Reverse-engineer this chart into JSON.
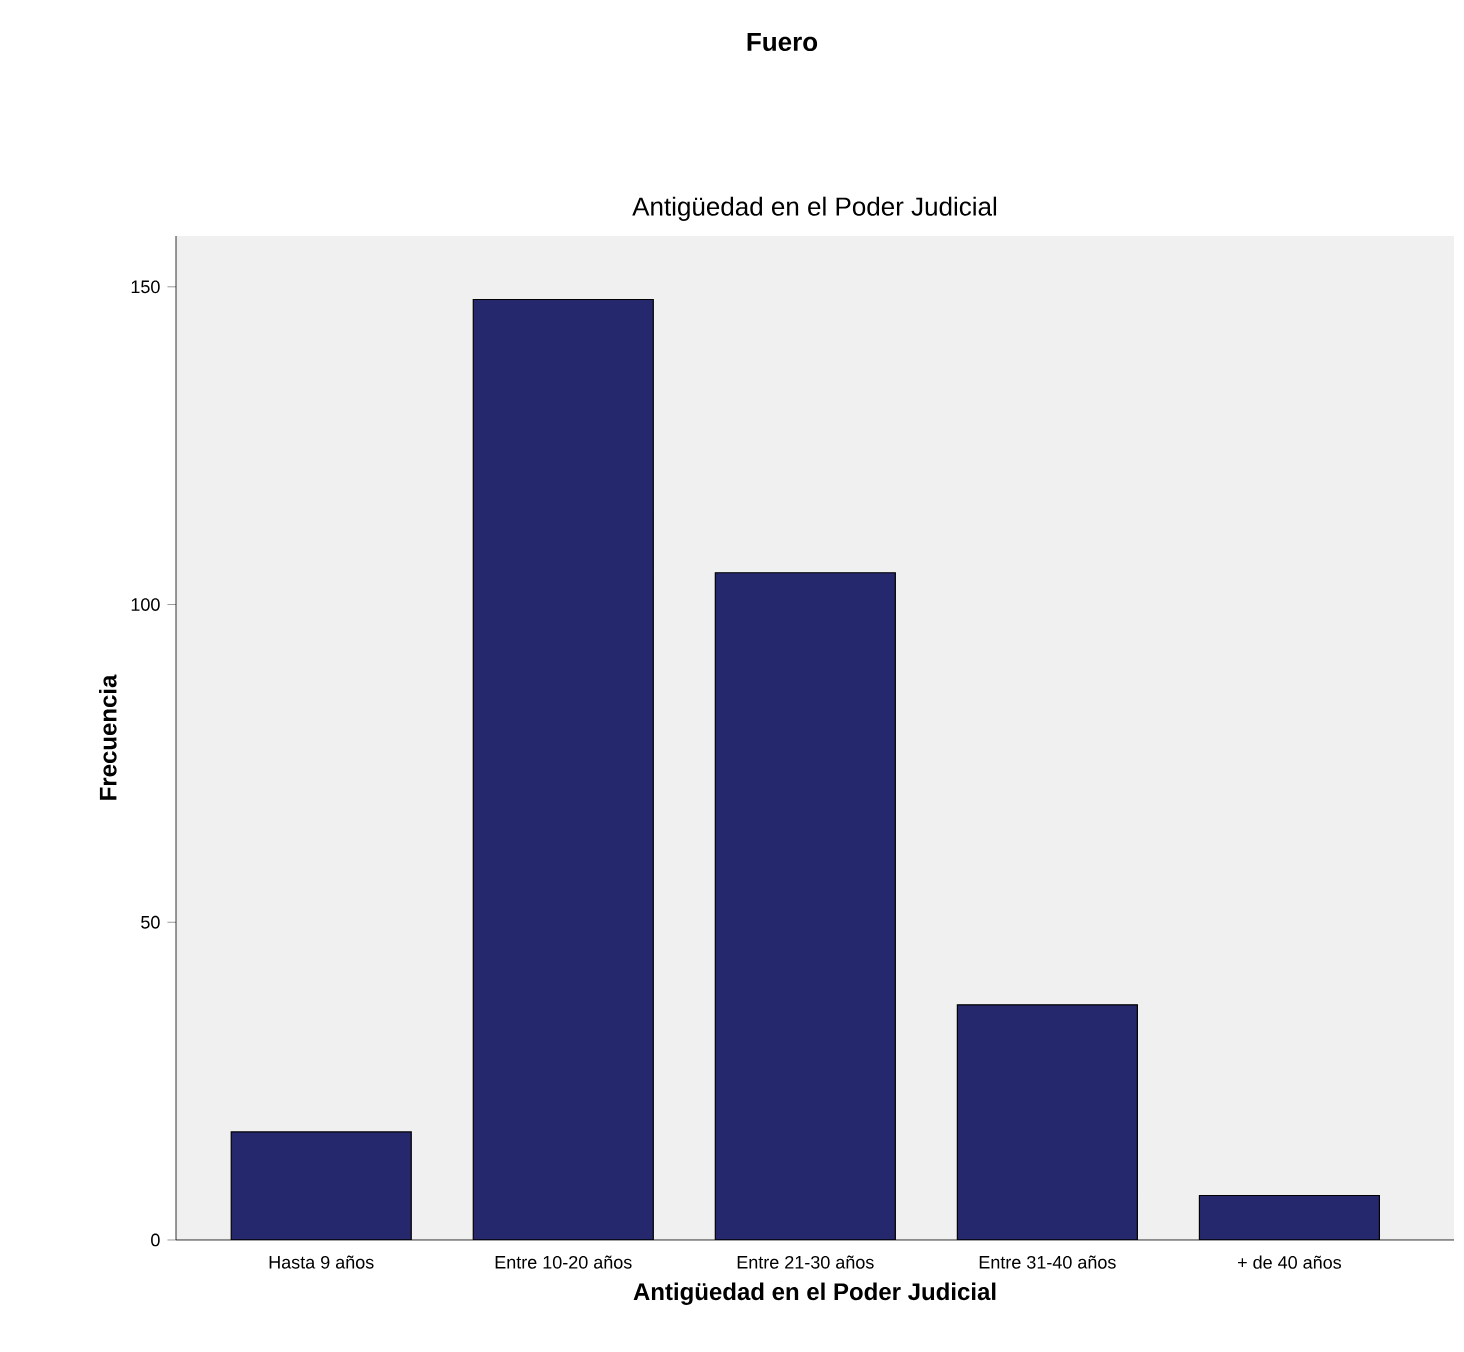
{
  "chart_data": {
    "type": "bar",
    "title": "Fuero",
    "subtitle": "Antigüedad en el Poder Judicial",
    "xlabel": "Antigüedad en el Poder Judicial",
    "ylabel": "Frecuencia",
    "categories": [
      "Hasta 9 años",
      "Entre 10-20 años",
      "Entre 21-30 años",
      "Entre 31-40 años",
      "+ de 40 años"
    ],
    "values": [
      17,
      148,
      105,
      37,
      7
    ],
    "color": "#26286e",
    "ylim": [
      0,
      158
    ],
    "yticks": [
      0,
      50,
      100,
      150
    ],
    "grid": false
  }
}
